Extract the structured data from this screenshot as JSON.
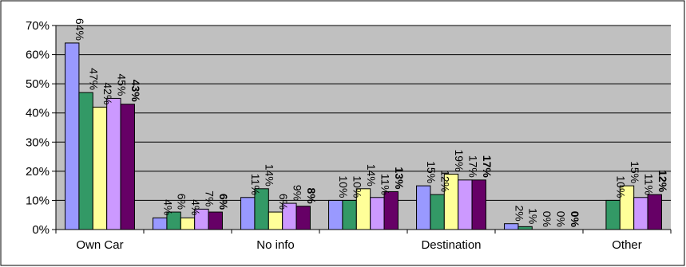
{
  "chart_data": {
    "type": "bar",
    "title": "",
    "xlabel": "",
    "ylabel": "",
    "ylim": [
      0,
      70
    ],
    "yticks": [
      "0%",
      "10%",
      "20%",
      "30%",
      "40%",
      "50%",
      "60%",
      "70%"
    ],
    "grid": true,
    "legend": "none",
    "categories": [
      "Own Car",
      "",
      "No info",
      "",
      "Destination",
      "",
      "Other"
    ],
    "series": [
      {
        "values": [
          64,
          4,
          11,
          10,
          15,
          2,
          null
        ],
        "labels": [
          "64%",
          "4%",
          "11%",
          "10%",
          "15%",
          "2%",
          ""
        ],
        "color": "#9999ff",
        "bold": false
      },
      {
        "values": [
          47,
          6,
          14,
          10,
          12,
          1,
          10
        ],
        "labels": [
          "47%",
          "6%",
          "14%",
          "10%",
          "12%",
          "1%",
          "10%"
        ],
        "color": "#339966",
        "bold": false
      },
      {
        "values": [
          42,
          4,
          6,
          14,
          19,
          0,
          15
        ],
        "labels": [
          "42%",
          "4%",
          "6%",
          "14%",
          "19%",
          "0%",
          "15%"
        ],
        "color": "#ffff99",
        "bold": false
      },
      {
        "values": [
          45,
          7,
          9,
          11,
          17,
          0,
          11
        ],
        "labels": [
          "45%",
          "7%",
          "9%",
          "11%",
          "17%",
          "0%",
          "11%"
        ],
        "color": "#cc99ff",
        "bold": false
      },
      {
        "values": [
          43,
          6,
          8,
          13,
          17,
          0,
          12
        ],
        "labels": [
          "43%",
          "6%",
          "8%",
          "13%",
          "17%",
          "0%",
          "12%"
        ],
        "color": "#660066",
        "bold": true
      }
    ],
    "colors": {
      "plot_background": "#c0c0c0",
      "gridline": "#000000",
      "frame": "#000000"
    }
  }
}
